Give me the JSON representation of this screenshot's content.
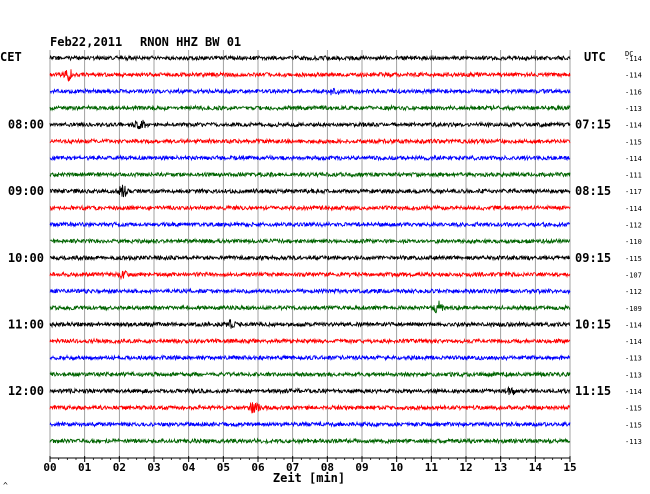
{
  "header": {
    "date": "Feb22,2011",
    "station": "RNON HHZ BW 01"
  },
  "corner_mark": "^",
  "chart_data": {
    "type": "line",
    "title": "Feb22,2011    RNON HHZ BW 01",
    "xlabel": "Zeit [min]",
    "ylabel_left": "CET",
    "ylabel_right": "UTC",
    "dc_label": "DC",
    "xlim": [
      0,
      15
    ],
    "x_ticks": [
      "00",
      "01",
      "02",
      "03",
      "04",
      "05",
      "06",
      "07",
      "08",
      "09",
      "10",
      "11",
      "12",
      "13",
      "14",
      "15"
    ],
    "trace_interval_min": 15,
    "trace_count": 24,
    "trace_colors": [
      "#000000",
      "#ff0000",
      "#0000ff",
      "#006400"
    ],
    "left_time_labels": [
      {
        "trace": 4,
        "label": "08:00"
      },
      {
        "trace": 8,
        "label": "09:00"
      },
      {
        "trace": 12,
        "label": "10:00"
      },
      {
        "trace": 16,
        "label": "11:00"
      },
      {
        "trace": 20,
        "label": "12:00"
      }
    ],
    "right_time_labels": [
      {
        "trace": 4,
        "label": "07:15"
      },
      {
        "trace": 8,
        "label": "08:15"
      },
      {
        "trace": 12,
        "label": "09:15"
      },
      {
        "trace": 16,
        "label": "10:15"
      },
      {
        "trace": 20,
        "label": "11:15"
      }
    ],
    "dc_offsets": [
      "-114",
      "-114",
      "-116",
      "-113",
      "-114",
      "-115",
      "-114",
      "-111",
      "-117",
      "-114",
      "-112",
      "-110",
      "-115",
      "-107",
      "-112",
      "-109",
      "-114",
      "-114",
      "-113",
      "-113",
      "-114",
      "-115",
      "-115",
      "-113"
    ],
    "events": [
      {
        "trace": 1,
        "minute": 0.55,
        "amplitude": 5
      },
      {
        "trace": 2,
        "minute": 8.2,
        "amplitude": 4
      },
      {
        "trace": 4,
        "minute": 2.6,
        "amplitude": 6
      },
      {
        "trace": 8,
        "minute": 2.1,
        "amplitude": 5
      },
      {
        "trace": 13,
        "minute": 2.1,
        "amplitude": 3
      },
      {
        "trace": 15,
        "minute": 11.2,
        "amplitude": 6
      },
      {
        "trace": 16,
        "minute": 5.2,
        "amplitude": 3
      },
      {
        "trace": 20,
        "minute": 13.3,
        "amplitude": 3
      },
      {
        "trace": 21,
        "minute": 5.9,
        "amplitude": 6
      }
    ],
    "grid": true
  }
}
